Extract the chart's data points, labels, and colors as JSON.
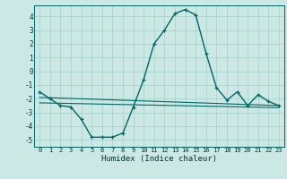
{
  "title": "",
  "xlabel": "Humidex (Indice chaleur)",
  "bg_color": "#cce8e4",
  "grid_color": "#aad4cf",
  "line_color": "#006666",
  "xlim": [
    -0.5,
    23.5
  ],
  "ylim": [
    -5.5,
    4.8
  ],
  "xticks": [
    0,
    1,
    2,
    3,
    4,
    5,
    6,
    7,
    8,
    9,
    10,
    11,
    12,
    13,
    14,
    15,
    16,
    17,
    18,
    19,
    20,
    21,
    22,
    23
  ],
  "yticks": [
    -5,
    -4,
    -3,
    -2,
    -1,
    0,
    1,
    2,
    3,
    4
  ],
  "main_curve_x": [
    0,
    1,
    2,
    3,
    4,
    5,
    6,
    7,
    8,
    9,
    10,
    11,
    12,
    13,
    14,
    15,
    16,
    17,
    18,
    19,
    20,
    21,
    22,
    23
  ],
  "main_curve_y": [
    -1.5,
    -2.0,
    -2.5,
    -2.6,
    -3.5,
    -4.8,
    -4.8,
    -4.8,
    -4.5,
    -2.6,
    -0.6,
    2.0,
    3.0,
    4.2,
    4.5,
    4.1,
    1.3,
    -1.2,
    -2.1,
    -1.5,
    -2.5,
    -1.7,
    -2.2,
    -2.5
  ],
  "trend1_x": [
    0,
    23
  ],
  "trend1_y": [
    -1.9,
    -2.5
  ],
  "trend2_x": [
    0,
    23
  ],
  "trend2_y": [
    -2.3,
    -2.65
  ],
  "font_color": "#003333",
  "xlabel_fontsize": 6.5,
  "tick_fontsize": 5.0
}
